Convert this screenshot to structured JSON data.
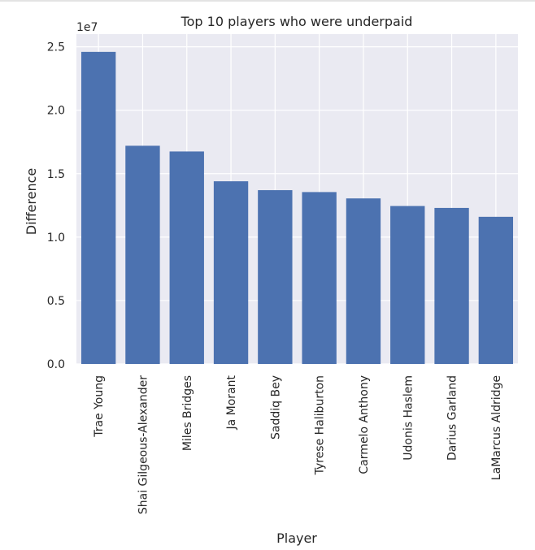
{
  "chart_data": {
    "type": "bar",
    "title": "Top 10 players who were underpaid",
    "xlabel": "Player",
    "ylabel": "Difference",
    "offset_label": "1e7",
    "categories": [
      "Trae Young",
      "Shai Gilgeous-Alexander",
      "Miles Bridges",
      "Ja Morant",
      "Saddiq Bey",
      "Tyrese Haliburton",
      "Carmelo Anthony",
      "Udonis Haslem",
      "Darius Garland",
      "LaMarcus Aldridge"
    ],
    "values": [
      24600000,
      17200000,
      16750000,
      14400000,
      13700000,
      13550000,
      13050000,
      12450000,
      12300000,
      11600000
    ],
    "ylim": [
      0,
      26000000
    ],
    "yticks": [
      0,
      5000000,
      10000000,
      15000000,
      20000000,
      25000000
    ],
    "ytick_labels": [
      "0.0",
      "0.5",
      "1.0",
      "1.5",
      "2.0",
      "2.5"
    ],
    "grid": true,
    "colors": {
      "bar": "#4c72b0",
      "plot_bg": "#eaeaf2",
      "grid": "#ffffff",
      "text": "#262626"
    }
  }
}
